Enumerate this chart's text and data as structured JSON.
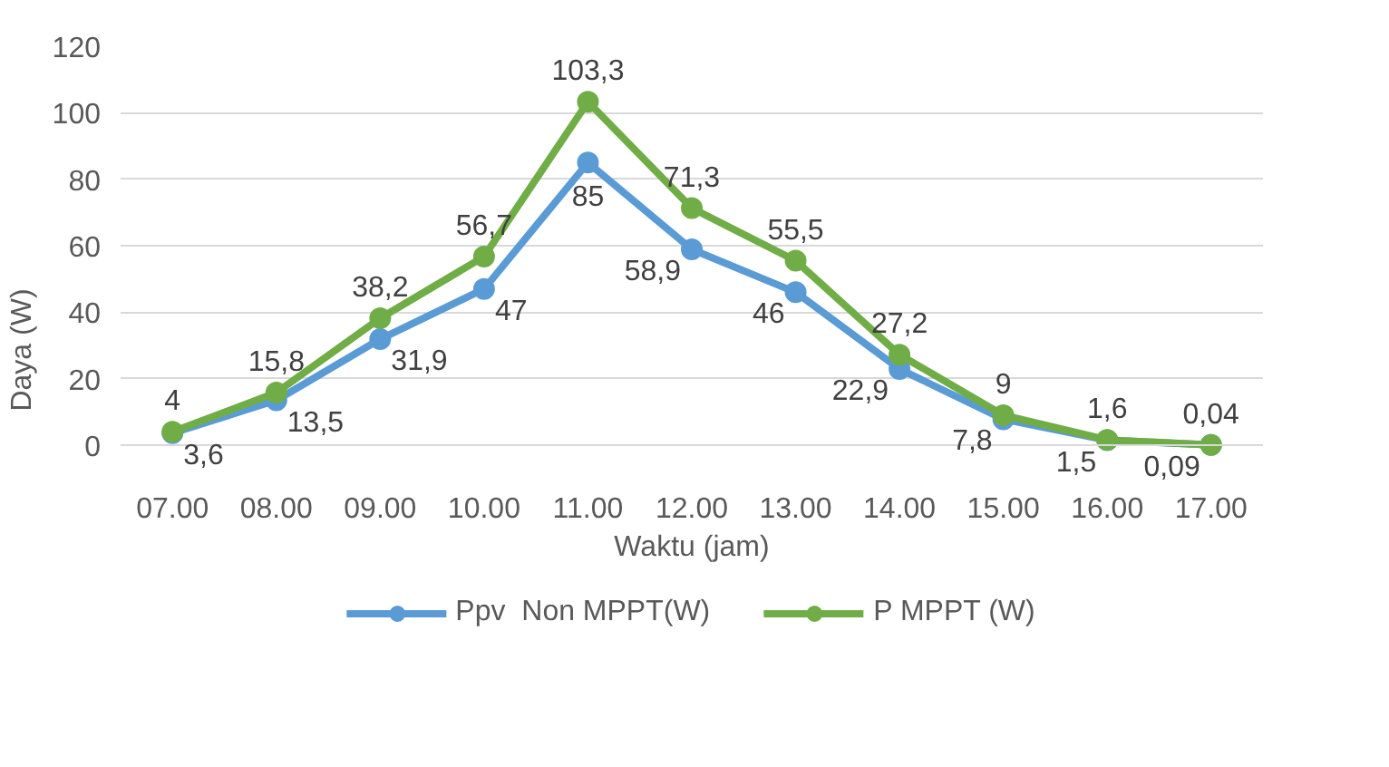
{
  "chart_data": {
    "type": "line",
    "xlabel": "Waktu (jam)",
    "ylabel": "Daya (W)",
    "categories": [
      "07.00",
      "08.00",
      "09.00",
      "10.00",
      "11.00",
      "12.00",
      "13.00",
      "14.00",
      "15.00",
      "16.00",
      "17.00"
    ],
    "ylim": [
      0,
      120
    ],
    "yticks": [
      0,
      20,
      40,
      60,
      80,
      100,
      120
    ],
    "grid": "y",
    "legend": "bottom",
    "marker": "circle",
    "line_style": "solid",
    "series": [
      {
        "name": "Ppv  Non MPPT(W)",
        "color": "#5b9bd5",
        "values": [
          3.6,
          13.5,
          31.9,
          47,
          85,
          58.9,
          46,
          22.9,
          7.8,
          1.5,
          0.09
        ],
        "value_labels": [
          "3,6",
          "13,5",
          "31,9",
          "47",
          "85",
          "58,9",
          "46",
          "22,9",
          "7,8",
          "1,5",
          "0,09"
        ]
      },
      {
        "name": "P MPPT (W)",
        "color": "#70ad47",
        "values": [
          4,
          15.8,
          38.2,
          56.7,
          103.3,
          71.3,
          55.5,
          27.2,
          9,
          1.6,
          0.04
        ],
        "value_labels": [
          "4",
          "15,8",
          "38,2",
          "56,7",
          "103,3",
          "71,3",
          "55,5",
          "27,2",
          "9",
          "1,6",
          "0,04"
        ]
      }
    ]
  }
}
